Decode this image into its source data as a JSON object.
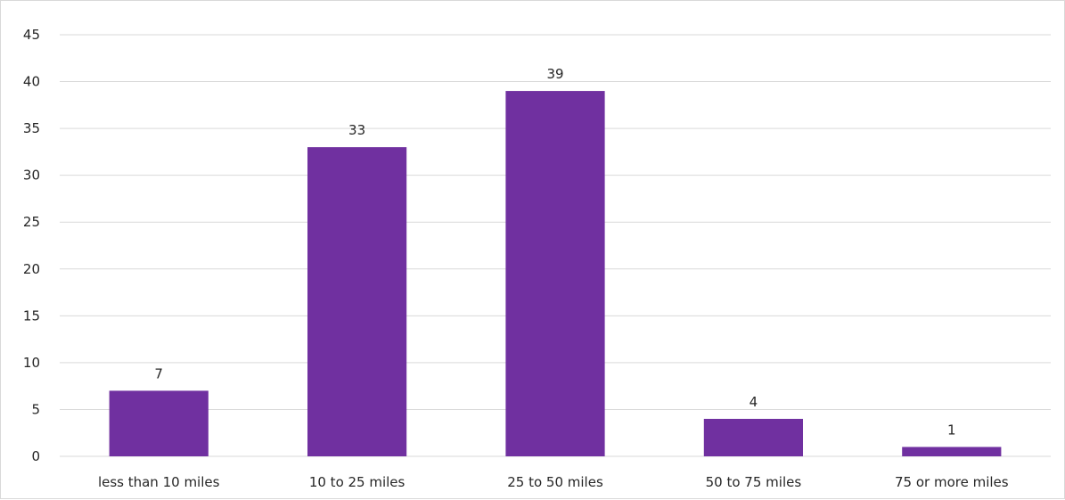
{
  "chart_data": {
    "type": "bar",
    "categories": [
      "less than 10 miles",
      "10 to 25 miles",
      "25 to 50 miles",
      "50 to 75 miles",
      "75 or more miles"
    ],
    "values": [
      7,
      33,
      39,
      4,
      1
    ],
    "data_labels": [
      "7",
      "33",
      "39",
      "4",
      "1"
    ],
    "title": "",
    "xlabel": "",
    "ylabel": "",
    "ylim": [
      0,
      45
    ],
    "y_ticks": [
      "0",
      "5",
      "10",
      "15",
      "20",
      "25",
      "30",
      "35",
      "40",
      "45"
    ],
    "grid": true,
    "legend": "none",
    "bar_color": "#7030a0",
    "grid_color": "#d9d9d9"
  }
}
